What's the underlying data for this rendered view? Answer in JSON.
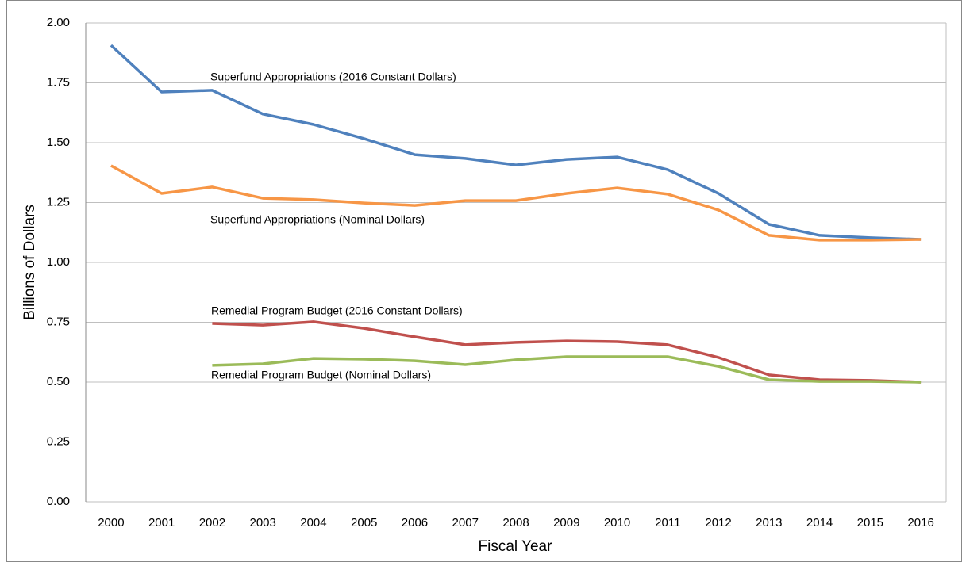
{
  "chart_data": {
    "type": "line",
    "x_label": "Fiscal Year",
    "y_label": "Billions of Dollars",
    "categories": [
      "2000",
      "2001",
      "2002",
      "2003",
      "2004",
      "2005",
      "2006",
      "2007",
      "2008",
      "2009",
      "2010",
      "2011",
      "2012",
      "2013",
      "2014",
      "2015",
      "2016"
    ],
    "series": [
      {
        "name": "Superfund Appropriations (2016 Constant Dollars)",
        "color": "#4f81bd",
        "values": [
          1.907,
          1.712,
          1.719,
          1.62,
          1.576,
          1.517,
          1.45,
          1.434,
          1.407,
          1.43,
          1.44,
          1.387,
          1.288,
          1.159,
          1.113,
          1.103,
          1.096
        ]
      },
      {
        "name": "Superfund Appropriations (Nominal Dollars)",
        "color": "#f79646",
        "values": [
          1.404,
          1.288,
          1.315,
          1.268,
          1.262,
          1.248,
          1.238,
          1.258,
          1.258,
          1.288,
          1.311,
          1.285,
          1.219,
          1.113,
          1.093,
          1.093,
          1.096
        ]
      },
      {
        "name": "Remedial Program Budget (2016 Constant Dollars)",
        "color": "#c0504d",
        "values": [
          null,
          null,
          0.745,
          0.738,
          0.752,
          0.725,
          0.689,
          0.656,
          0.666,
          0.672,
          0.669,
          0.656,
          0.603,
          0.53,
          0.51,
          0.507,
          0.5
        ]
      },
      {
        "name": "Remedial Program Budget (Nominal Dollars)",
        "color": "#9bbb59",
        "values": [
          null,
          null,
          0.57,
          0.576,
          0.599,
          0.596,
          0.589,
          0.573,
          0.593,
          0.606,
          0.606,
          0.606,
          0.566,
          0.51,
          0.503,
          0.503,
          0.5
        ]
      }
    ],
    "ylim": [
      0,
      2
    ],
    "yticks": [
      {
        "value": 0,
        "label": "0.00"
      },
      {
        "value": 0.25,
        "label": "0.25"
      },
      {
        "value": 0.5,
        "label": "0.50"
      },
      {
        "value": 0.75,
        "label": "0.75"
      },
      {
        "value": 1,
        "label": "1.00"
      },
      {
        "value": 1.25,
        "label": "1.25"
      },
      {
        "value": 1.5,
        "label": "1.50"
      },
      {
        "value": 1.75,
        "label": "1.75"
      },
      {
        "value": 2,
        "label": "2.00"
      }
    ],
    "grid": true
  }
}
